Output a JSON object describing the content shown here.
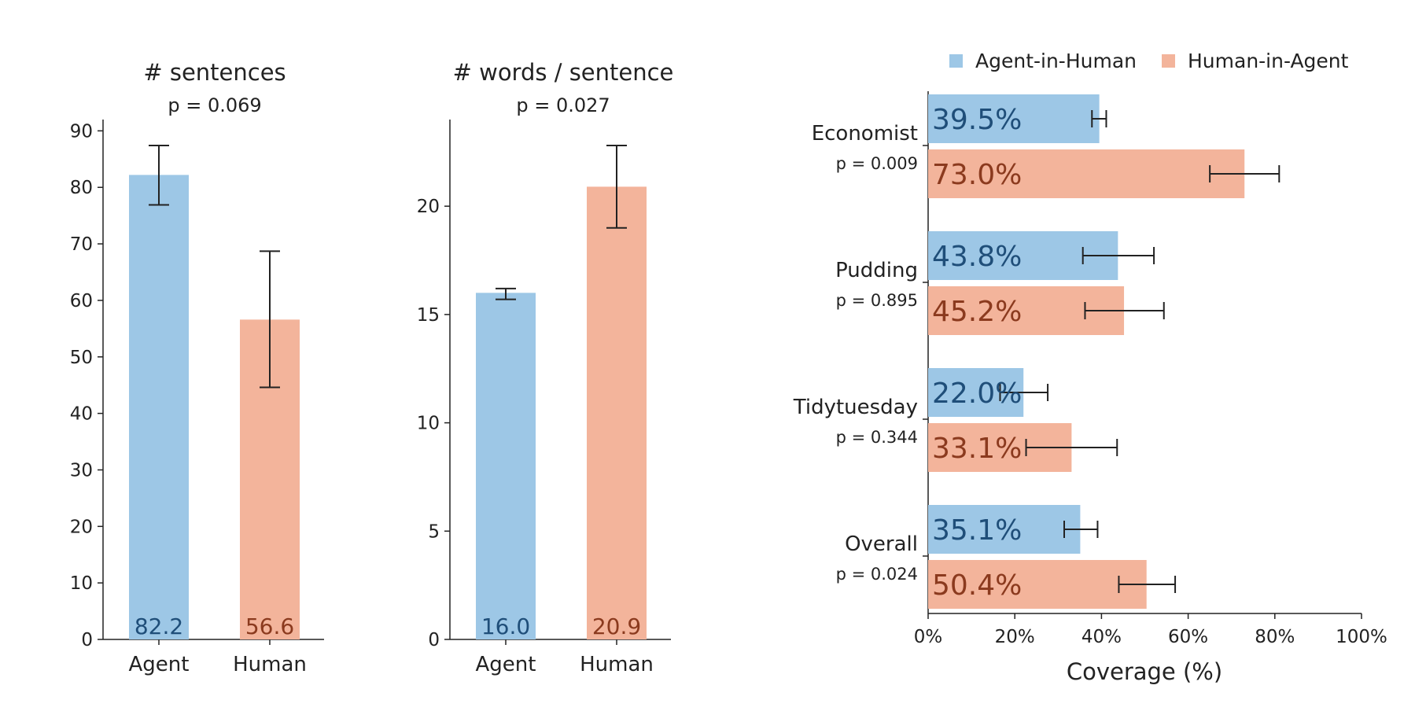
{
  "colors": {
    "agent": "#9dc7e6",
    "human": "#f3b49b",
    "agent_text": "#1f4e79",
    "human_text": "#8b3a1e",
    "axis": "#222222",
    "text": "#222222"
  },
  "chart_data": [
    {
      "type": "bar",
      "title": "# sentences",
      "subtitle": "p = 0.069",
      "categories": [
        "Agent",
        "Human"
      ],
      "values": [
        82.2,
        56.6
      ],
      "value_labels": [
        "82.2",
        "56.6"
      ],
      "error_low": [
        76.9,
        44.6
      ],
      "error_high": [
        87.4,
        68.7
      ],
      "ylim": [
        0,
        92
      ],
      "yticks": [
        0,
        10,
        20,
        30,
        40,
        50,
        60,
        70,
        80,
        90
      ],
      "ytick_labels": [
        "0",
        "10",
        "20",
        "30",
        "40",
        "50",
        "60",
        "70",
        "80",
        "90"
      ],
      "grid": false
    },
    {
      "type": "bar",
      "title": "# words / sentence",
      "subtitle": "p = 0.027",
      "categories": [
        "Agent",
        "Human"
      ],
      "values": [
        16.0,
        20.9
      ],
      "value_labels": [
        "16.0",
        "20.9"
      ],
      "error_low": [
        15.7,
        19.0
      ],
      "error_high": [
        16.2,
        22.8
      ],
      "ylim": [
        0,
        24
      ],
      "yticks": [
        0,
        5,
        10,
        15,
        20
      ],
      "ytick_labels": [
        "0",
        "5",
        "10",
        "15",
        "20"
      ],
      "grid": false
    },
    {
      "type": "bar",
      "orientation": "horizontal",
      "categories": [
        "Economist",
        "Pudding",
        "Tidytuesday",
        "Overall"
      ],
      "category_pvalues": [
        "p = 0.009",
        "p = 0.895",
        "p = 0.344",
        "p = 0.024"
      ],
      "series": [
        {
          "name": "Agent-in-Human",
          "values": [
            39.5,
            43.8,
            22.0,
            35.1
          ],
          "value_labels": [
            "39.5%",
            "43.8%",
            "22.0%",
            "35.1%"
          ],
          "error_low": [
            37.8,
            35.7,
            16.6,
            31.4
          ],
          "error_high": [
            41.1,
            52.1,
            27.6,
            39.1
          ]
        },
        {
          "name": "Human-in-Agent",
          "values": [
            73.0,
            45.2,
            33.1,
            50.4
          ],
          "value_labels": [
            "73.0%",
            "45.2%",
            "33.1%",
            "50.4%"
          ],
          "error_low": [
            65.0,
            36.2,
            22.6,
            44.0
          ],
          "error_high": [
            81.0,
            54.4,
            43.6,
            57.0
          ]
        }
      ],
      "xlabel": "Coverage (%)",
      "xlim": [
        0,
        100
      ],
      "xticks": [
        0,
        20,
        40,
        60,
        80,
        100
      ],
      "xtick_labels": [
        "0%",
        "20%",
        "40%",
        "60%",
        "80%",
        "100%"
      ],
      "legend": "top",
      "grid": false
    }
  ]
}
